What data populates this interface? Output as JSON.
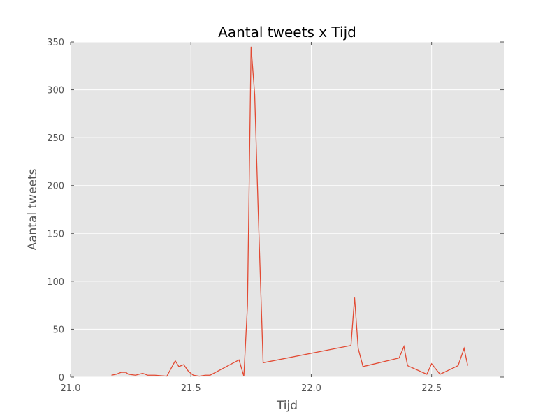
{
  "chart_data": {
    "type": "line",
    "title": "Aantal tweets x Tijd",
    "xlabel": "Tijd",
    "ylabel": "Aantal tweets",
    "xlim": [
      21.0,
      22.8
    ],
    "ylim": [
      0,
      350
    ],
    "xticks": [
      21.0,
      21.5,
      22.0,
      22.5
    ],
    "xtick_labels": [
      "21.0",
      "21.5",
      "22.0",
      "22.5"
    ],
    "yticks": [
      0,
      50,
      100,
      150,
      200,
      250,
      300,
      350
    ],
    "ytick_labels": [
      "0",
      "50",
      "100",
      "150",
      "200",
      "250",
      "300",
      "350"
    ],
    "grid": true,
    "background_color": "#e5e5e5",
    "series": [
      {
        "color": "#e24a33",
        "x": [
          21.17,
          21.19,
          21.21,
          21.23,
          21.24,
          21.27,
          21.3,
          21.32,
          21.35,
          21.4,
          21.435,
          21.45,
          21.47,
          21.49,
          21.51,
          21.535,
          21.56,
          21.58,
          21.7,
          21.72,
          21.735,
          21.75,
          21.765,
          21.78,
          21.8,
          22.165,
          22.18,
          22.195,
          22.215,
          22.365,
          22.385,
          22.4,
          22.48,
          22.5,
          22.535,
          22.61,
          22.635,
          22.65
        ],
        "y": [
          2,
          3,
          5,
          5,
          3,
          2,
          4,
          2,
          2,
          1,
          17,
          11,
          13,
          6,
          2,
          1,
          2,
          2,
          18,
          1,
          75,
          345,
          295,
          170,
          15,
          33,
          83,
          30,
          11,
          20,
          32,
          12,
          3,
          14,
          3,
          12,
          30,
          12
        ]
      }
    ]
  }
}
